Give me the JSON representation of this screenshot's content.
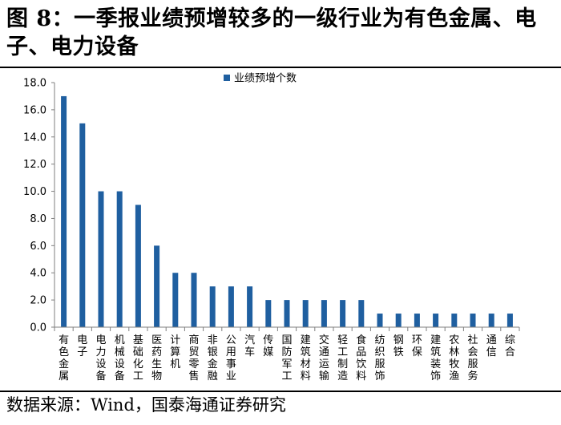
{
  "figure": {
    "title": "图 8：一季报业绩预增较多的一级行业为有色金属、电子、电力设备",
    "source": "数据来源：Wind，国泰海通证券研究"
  },
  "chart_data": {
    "type": "bar",
    "categories": [
      "有色金属",
      "电子",
      "电力设备",
      "机械设备",
      "基础化工",
      "医药生物",
      "计算机",
      "商贸零售",
      "非银金融",
      "公用事业",
      "汽车",
      "传媒",
      "国防军工",
      "建筑材料",
      "交通运输",
      "轻工制造",
      "食品饮料",
      "纺织服饰",
      "钢铁",
      "环保",
      "建筑装饰",
      "农林牧渔",
      "社会服务",
      "通信",
      "综合"
    ],
    "series": [
      {
        "name": "业绩预增个数",
        "values": [
          17,
          15,
          10,
          10,
          9,
          6,
          4,
          4,
          3,
          3,
          3,
          2,
          2,
          2,
          2,
          2,
          2,
          1,
          1,
          1,
          1,
          1,
          1,
          1,
          1
        ]
      }
    ],
    "ylim": [
      0,
      18
    ],
    "yticks": [
      "0.0",
      "2.0",
      "4.0",
      "6.0",
      "8.0",
      "10.0",
      "12.0",
      "14.0",
      "16.0",
      "18.0"
    ],
    "legend_position": "top-center",
    "grid": false,
    "colors": {
      "bar": "#1f5fa0"
    }
  }
}
